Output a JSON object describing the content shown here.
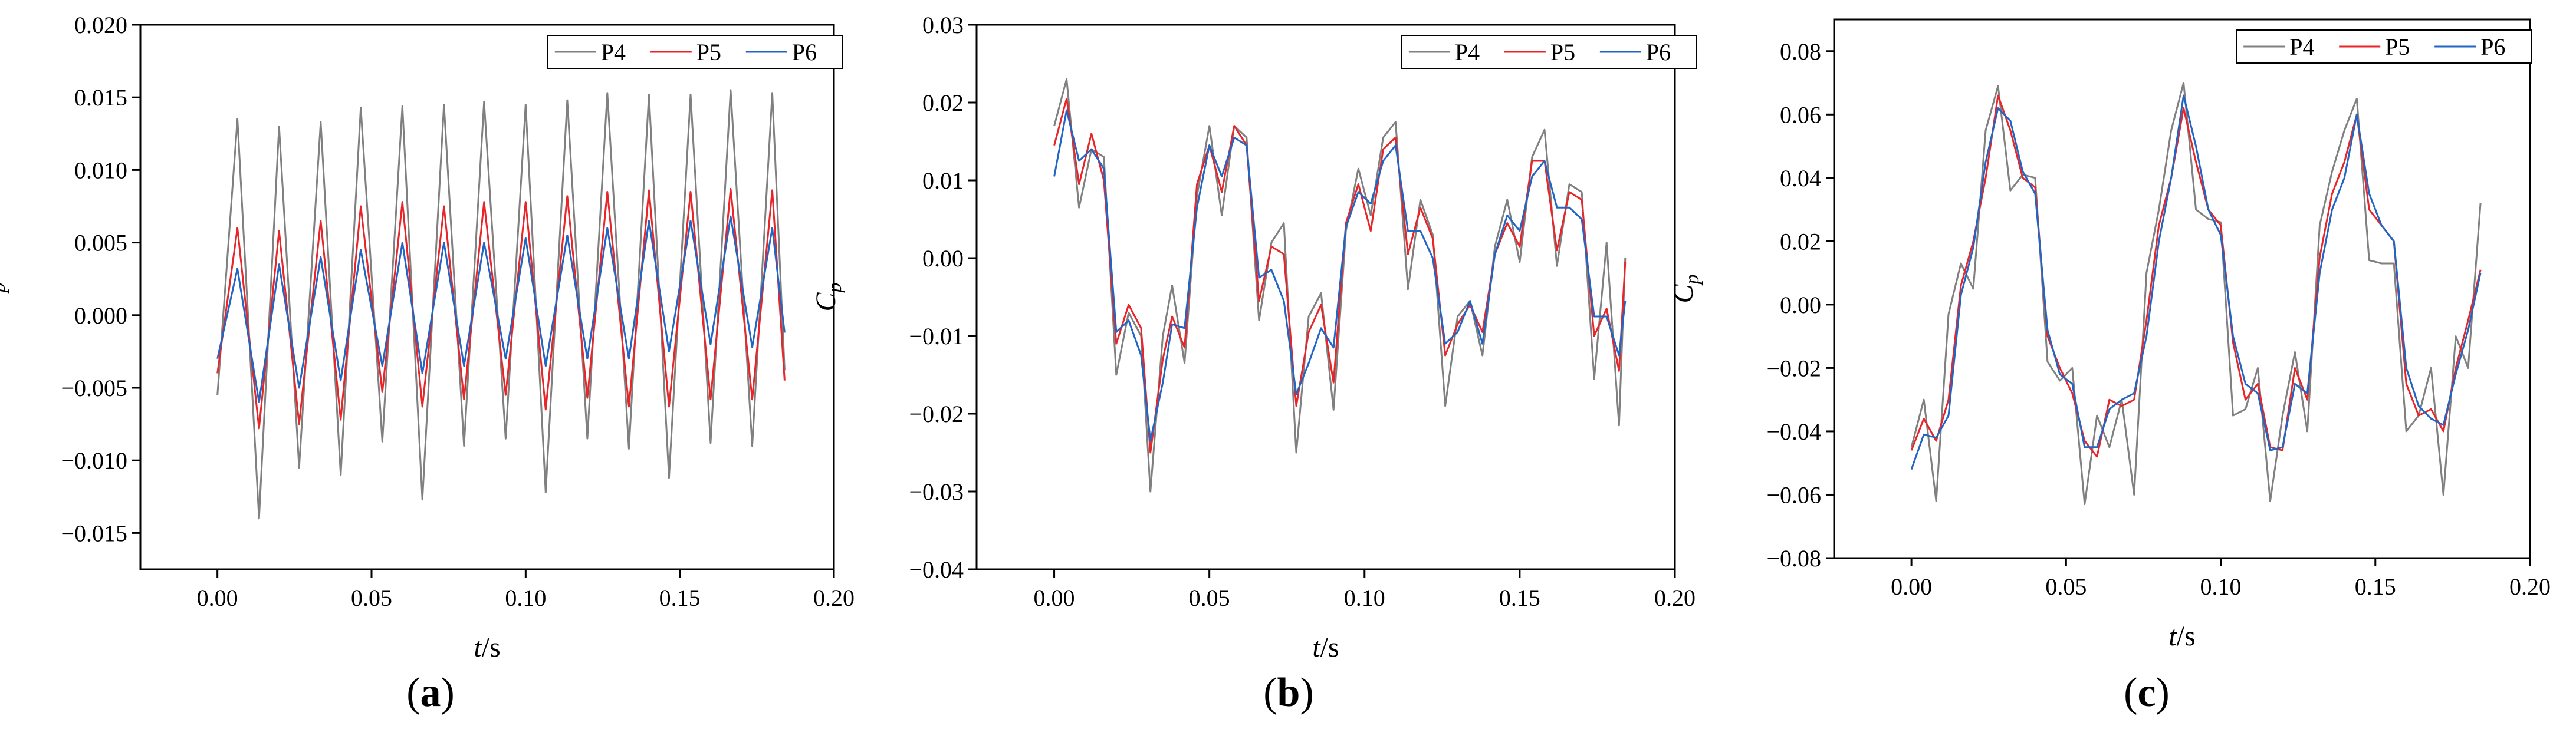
{
  "panels": [
    {
      "label_open": "(",
      "label_letter": "a",
      "label_close": ")"
    },
    {
      "label_open": "(",
      "label_letter": "b",
      "label_close": ")"
    },
    {
      "label_open": "(",
      "label_letter": "c",
      "label_close": ")"
    }
  ],
  "colors": {
    "P4": "#808080",
    "P5": "#e8262a",
    "P6": "#2166c5"
  },
  "chart_data": [
    {
      "type": "line",
      "title": "",
      "xlabel": "t/s",
      "ylabel": "Cp",
      "xlim": [
        -0.025,
        0.2
      ],
      "ylim": [
        -0.0175,
        0.02
      ],
      "xticks": [
        0.0,
        0.05,
        0.1,
        0.15,
        0.2
      ],
      "xtick_labels": [
        "0.00",
        "0.05",
        "0.10",
        "0.15",
        "0.20"
      ],
      "yticks": [
        -0.015,
        -0.01,
        -0.005,
        0.0,
        0.005,
        0.01,
        0.015,
        0.02
      ],
      "ytick_labels": [
        "−0.015",
        "−0.010",
        "−0.005",
        "0.000",
        "0.005",
        "0.010",
        "0.015",
        "0.020"
      ],
      "legend_position": "top-right",
      "grid": false,
      "series": [
        {
          "name": "P4",
          "x": [
            0,
            0.0065,
            0.0135,
            0.02,
            0.0265,
            0.0335,
            0.04,
            0.0465,
            0.0535,
            0.06,
            0.0665,
            0.0735,
            0.08,
            0.0865,
            0.0935,
            0.1,
            0.1065,
            0.1135,
            0.12,
            0.1265,
            0.1335,
            0.14,
            0.1465,
            0.1535,
            0.16,
            0.1665,
            0.1735,
            0.18,
            0.184
          ],
          "y": [
            -0.0055,
            0.0135,
            -0.014,
            0.013,
            -0.0105,
            0.0133,
            -0.011,
            0.0143,
            -0.0087,
            0.0144,
            -0.0127,
            0.0145,
            -0.009,
            0.0147,
            -0.0085,
            0.0145,
            -0.0122,
            0.0148,
            -0.0085,
            0.0153,
            -0.0092,
            0.0152,
            -0.0112,
            0.0152,
            -0.0088,
            0.0155,
            -0.009,
            0.0153,
            -0.0038
          ]
        },
        {
          "name": "P5",
          "x": [
            0,
            0.0065,
            0.0135,
            0.02,
            0.0265,
            0.0335,
            0.04,
            0.0465,
            0.0535,
            0.06,
            0.0665,
            0.0735,
            0.08,
            0.0865,
            0.0935,
            0.1,
            0.1065,
            0.1135,
            0.12,
            0.1265,
            0.1335,
            0.14,
            0.1465,
            0.1535,
            0.16,
            0.1665,
            0.1735,
            0.18,
            0.184
          ],
          "y": [
            -0.004,
            0.006,
            -0.0078,
            0.0058,
            -0.0075,
            0.0065,
            -0.0072,
            0.0075,
            -0.0053,
            0.0078,
            -0.0063,
            0.0075,
            -0.0058,
            0.0078,
            -0.0055,
            0.0078,
            -0.0065,
            0.0082,
            -0.0057,
            0.0085,
            -0.0063,
            0.0086,
            -0.0063,
            0.0085,
            -0.0058,
            0.0087,
            -0.0058,
            0.0086,
            -0.0045
          ]
        },
        {
          "name": "P6",
          "x": [
            0,
            0.0065,
            0.0135,
            0.02,
            0.0265,
            0.0335,
            0.04,
            0.0465,
            0.0535,
            0.06,
            0.0665,
            0.0735,
            0.08,
            0.0865,
            0.0935,
            0.1,
            0.1065,
            0.1135,
            0.12,
            0.1265,
            0.1335,
            0.14,
            0.1465,
            0.1535,
            0.16,
            0.1665,
            0.1735,
            0.18,
            0.184
          ],
          "y": [
            -0.003,
            0.0032,
            -0.006,
            0.0035,
            -0.005,
            0.004,
            -0.0045,
            0.0045,
            -0.0035,
            0.005,
            -0.004,
            0.005,
            -0.0035,
            0.005,
            -0.003,
            0.0053,
            -0.0035,
            0.0055,
            -0.003,
            0.006,
            -0.003,
            0.0065,
            -0.0025,
            0.0065,
            -0.002,
            0.0068,
            -0.0022,
            0.006,
            -0.0012
          ]
        }
      ]
    },
    {
      "type": "line",
      "title": "",
      "xlabel": "t/s",
      "ylabel": "Cp",
      "xlim": [
        -0.025,
        0.2
      ],
      "ylim": [
        -0.04,
        0.03
      ],
      "xticks": [
        0.0,
        0.05,
        0.1,
        0.15,
        0.2
      ],
      "xtick_labels": [
        "0.00",
        "0.05",
        "0.10",
        "0.15",
        "0.20"
      ],
      "yticks": [
        -0.04,
        -0.03,
        -0.02,
        -0.01,
        0.0,
        0.01,
        0.02,
        0.03
      ],
      "ytick_labels": [
        "−0.04",
        "−0.03",
        "−0.02",
        "−0.01",
        "0.00",
        "0.01",
        "0.02",
        "0.03"
      ],
      "legend_position": "top-right",
      "grid": false,
      "series": [
        {
          "name": "P4",
          "x": [
            0,
            0.004,
            0.008,
            0.012,
            0.016,
            0.02,
            0.024,
            0.028,
            0.031,
            0.035,
            0.038,
            0.042,
            0.046,
            0.05,
            0.054,
            0.058,
            0.062,
            0.066,
            0.07,
            0.074,
            0.078,
            0.082,
            0.086,
            0.09,
            0.094,
            0.098,
            0.102,
            0.106,
            0.11,
            0.114,
            0.118,
            0.122,
            0.126,
            0.13,
            0.134,
            0.138,
            0.142,
            0.146,
            0.15,
            0.154,
            0.158,
            0.162,
            0.166,
            0.17,
            0.174,
            0.178,
            0.182,
            0.184
          ],
          "y": [
            0.017,
            0.023,
            0.0065,
            0.014,
            0.013,
            -0.015,
            -0.007,
            -0.01,
            -0.03,
            -0.01,
            -0.0035,
            -0.0135,
            0.008,
            0.017,
            0.0055,
            0.017,
            0.0155,
            -0.008,
            0.002,
            0.0045,
            -0.025,
            -0.0075,
            -0.0045,
            -0.0195,
            0.0035,
            0.0115,
            0.0055,
            0.0155,
            0.0175,
            -0.004,
            0.0075,
            0.003,
            -0.019,
            -0.0075,
            -0.0055,
            -0.0125,
            0.0015,
            0.0075,
            -0.0005,
            0.013,
            0.0165,
            -0.001,
            0.0095,
            0.0085,
            -0.0155,
            0.002,
            -0.0215,
            0.0
          ]
        },
        {
          "name": "P5",
          "x": [
            0,
            0.004,
            0.008,
            0.012,
            0.016,
            0.02,
            0.024,
            0.028,
            0.031,
            0.035,
            0.038,
            0.042,
            0.046,
            0.05,
            0.054,
            0.058,
            0.062,
            0.066,
            0.07,
            0.074,
            0.078,
            0.082,
            0.086,
            0.09,
            0.094,
            0.098,
            0.102,
            0.106,
            0.11,
            0.114,
            0.118,
            0.122,
            0.126,
            0.13,
            0.134,
            0.138,
            0.142,
            0.146,
            0.15,
            0.154,
            0.158,
            0.162,
            0.166,
            0.17,
            0.174,
            0.178,
            0.182,
            0.184
          ],
          "y": [
            0.0145,
            0.0205,
            0.0095,
            0.016,
            0.01,
            -0.011,
            -0.006,
            -0.009,
            -0.025,
            -0.013,
            -0.0075,
            -0.0115,
            0.0095,
            0.0145,
            0.0085,
            0.017,
            0.0145,
            -0.0055,
            0.0015,
            0.0005,
            -0.019,
            -0.0095,
            -0.006,
            -0.016,
            0.0045,
            0.0095,
            0.0035,
            0.014,
            0.0155,
            0.0005,
            0.0065,
            0.0025,
            -0.0125,
            -0.0085,
            -0.006,
            -0.0095,
            0.0005,
            0.0045,
            0.0015,
            0.0125,
            0.0125,
            0.001,
            0.0085,
            0.0075,
            -0.01,
            -0.0065,
            -0.0145,
            -0.0005
          ]
        },
        {
          "name": "P6",
          "x": [
            0,
            0.004,
            0.008,
            0.012,
            0.016,
            0.02,
            0.024,
            0.028,
            0.031,
            0.035,
            0.038,
            0.042,
            0.046,
            0.05,
            0.054,
            0.058,
            0.062,
            0.066,
            0.07,
            0.074,
            0.078,
            0.082,
            0.086,
            0.09,
            0.094,
            0.098,
            0.102,
            0.106,
            0.11,
            0.114,
            0.118,
            0.122,
            0.126,
            0.13,
            0.134,
            0.138,
            0.142,
            0.146,
            0.15,
            0.154,
            0.158,
            0.162,
            0.166,
            0.17,
            0.174,
            0.178,
            0.182,
            0.184
          ],
          "y": [
            0.0105,
            0.019,
            0.0125,
            0.014,
            0.0115,
            -0.0095,
            -0.008,
            -0.0125,
            -0.0235,
            -0.016,
            -0.0085,
            -0.009,
            0.0065,
            0.0145,
            0.0105,
            0.0155,
            0.0145,
            -0.0025,
            -0.0015,
            -0.0055,
            -0.0175,
            -0.0135,
            -0.009,
            -0.0115,
            0.004,
            0.0085,
            0.007,
            0.0125,
            0.0145,
            0.0035,
            0.0035,
            0.0,
            -0.011,
            -0.0095,
            -0.0055,
            -0.011,
            0.0005,
            0.0055,
            0.0035,
            0.0105,
            0.0125,
            0.0065,
            0.0065,
            0.005,
            -0.0075,
            -0.0075,
            -0.0125,
            -0.0055
          ]
        }
      ]
    },
    {
      "type": "line",
      "title": "",
      "xlabel": "t/s",
      "ylabel": "Cp",
      "xlim": [
        -0.025,
        0.2
      ],
      "ylim": [
        -0.08,
        0.09
      ],
      "xticks": [
        0.0,
        0.05,
        0.1,
        0.15,
        0.2
      ],
      "xtick_labels": [
        "0.00",
        "0.05",
        "0.10",
        "0.15",
        "0.20"
      ],
      "yticks": [
        -0.08,
        -0.06,
        -0.04,
        -0.02,
        0.0,
        0.02,
        0.04,
        0.06,
        0.08
      ],
      "ytick_labels": [
        "−0.08",
        "−0.06",
        "−0.04",
        "−0.02",
        "0.00",
        "0.02",
        "0.04",
        "0.06",
        "0.08"
      ],
      "legend_position": "top-right",
      "grid": false,
      "series": [
        {
          "name": "P4",
          "x": [
            0,
            0.004,
            0.008,
            0.012,
            0.016,
            0.02,
            0.024,
            0.028,
            0.032,
            0.036,
            0.04,
            0.044,
            0.048,
            0.052,
            0.056,
            0.06,
            0.064,
            0.068,
            0.072,
            0.076,
            0.08,
            0.084,
            0.088,
            0.092,
            0.096,
            0.1,
            0.104,
            0.108,
            0.112,
            0.116,
            0.12,
            0.124,
            0.128,
            0.132,
            0.136,
            0.14,
            0.144,
            0.148,
            0.152,
            0.156,
            0.16,
            0.164,
            0.168,
            0.172,
            0.176,
            0.18,
            0.184
          ],
          "y": [
            -0.045,
            -0.03,
            -0.062,
            -0.003,
            0.013,
            0.005,
            0.055,
            0.069,
            0.036,
            0.041,
            0.04,
            -0.018,
            -0.024,
            -0.02,
            -0.063,
            -0.035,
            -0.045,
            -0.03,
            -0.06,
            0.01,
            0.03,
            0.055,
            0.07,
            0.03,
            0.027,
            0.026,
            -0.035,
            -0.033,
            -0.02,
            -0.062,
            -0.035,
            -0.015,
            -0.04,
            0.025,
            0.042,
            0.055,
            0.065,
            0.014,
            0.013,
            0.013,
            -0.04,
            -0.035,
            -0.02,
            -0.06,
            -0.01,
            -0.02,
            0.032
          ]
        },
        {
          "name": "P5",
          "x": [
            0,
            0.004,
            0.008,
            0.012,
            0.016,
            0.02,
            0.024,
            0.028,
            0.032,
            0.036,
            0.04,
            0.044,
            0.048,
            0.052,
            0.056,
            0.06,
            0.064,
            0.068,
            0.072,
            0.076,
            0.08,
            0.084,
            0.088,
            0.092,
            0.096,
            0.1,
            0.104,
            0.108,
            0.112,
            0.116,
            0.12,
            0.124,
            0.128,
            0.132,
            0.136,
            0.14,
            0.144,
            0.148,
            0.152,
            0.156,
            0.16,
            0.164,
            0.168,
            0.172,
            0.176,
            0.18,
            0.184
          ],
          "y": [
            -0.046,
            -0.036,
            -0.043,
            -0.03,
            0.006,
            0.02,
            0.04,
            0.066,
            0.055,
            0.04,
            0.037,
            -0.01,
            -0.02,
            -0.028,
            -0.043,
            -0.048,
            -0.03,
            -0.032,
            -0.03,
            -0.005,
            0.025,
            0.04,
            0.062,
            0.045,
            0.03,
            0.025,
            -0.012,
            -0.03,
            -0.025,
            -0.045,
            -0.046,
            -0.02,
            -0.03,
            0.015,
            0.035,
            0.045,
            0.06,
            0.03,
            0.025,
            0.02,
            -0.025,
            -0.035,
            -0.033,
            -0.04,
            -0.02,
            -0.005,
            0.011
          ]
        },
        {
          "name": "P6",
          "x": [
            0,
            0.004,
            0.008,
            0.012,
            0.016,
            0.02,
            0.024,
            0.028,
            0.032,
            0.036,
            0.04,
            0.044,
            0.048,
            0.052,
            0.056,
            0.06,
            0.064,
            0.068,
            0.072,
            0.076,
            0.08,
            0.084,
            0.088,
            0.092,
            0.096,
            0.1,
            0.104,
            0.108,
            0.112,
            0.116,
            0.12,
            0.124,
            0.128,
            0.132,
            0.136,
            0.14,
            0.144,
            0.148,
            0.152,
            0.156,
            0.16,
            0.164,
            0.168,
            0.172,
            0.176,
            0.18,
            0.184
          ],
          "y": [
            -0.052,
            -0.041,
            -0.042,
            -0.035,
            0.003,
            0.018,
            0.045,
            0.062,
            0.058,
            0.042,
            0.035,
            -0.008,
            -0.022,
            -0.025,
            -0.045,
            -0.045,
            -0.033,
            -0.03,
            -0.028,
            -0.01,
            0.02,
            0.04,
            0.066,
            0.05,
            0.03,
            0.022,
            -0.01,
            -0.025,
            -0.028,
            -0.046,
            -0.045,
            -0.025,
            -0.028,
            0.01,
            0.03,
            0.04,
            0.06,
            0.035,
            0.025,
            0.02,
            -0.02,
            -0.032,
            -0.036,
            -0.038,
            -0.022,
            -0.008,
            0.01
          ]
        }
      ]
    }
  ]
}
